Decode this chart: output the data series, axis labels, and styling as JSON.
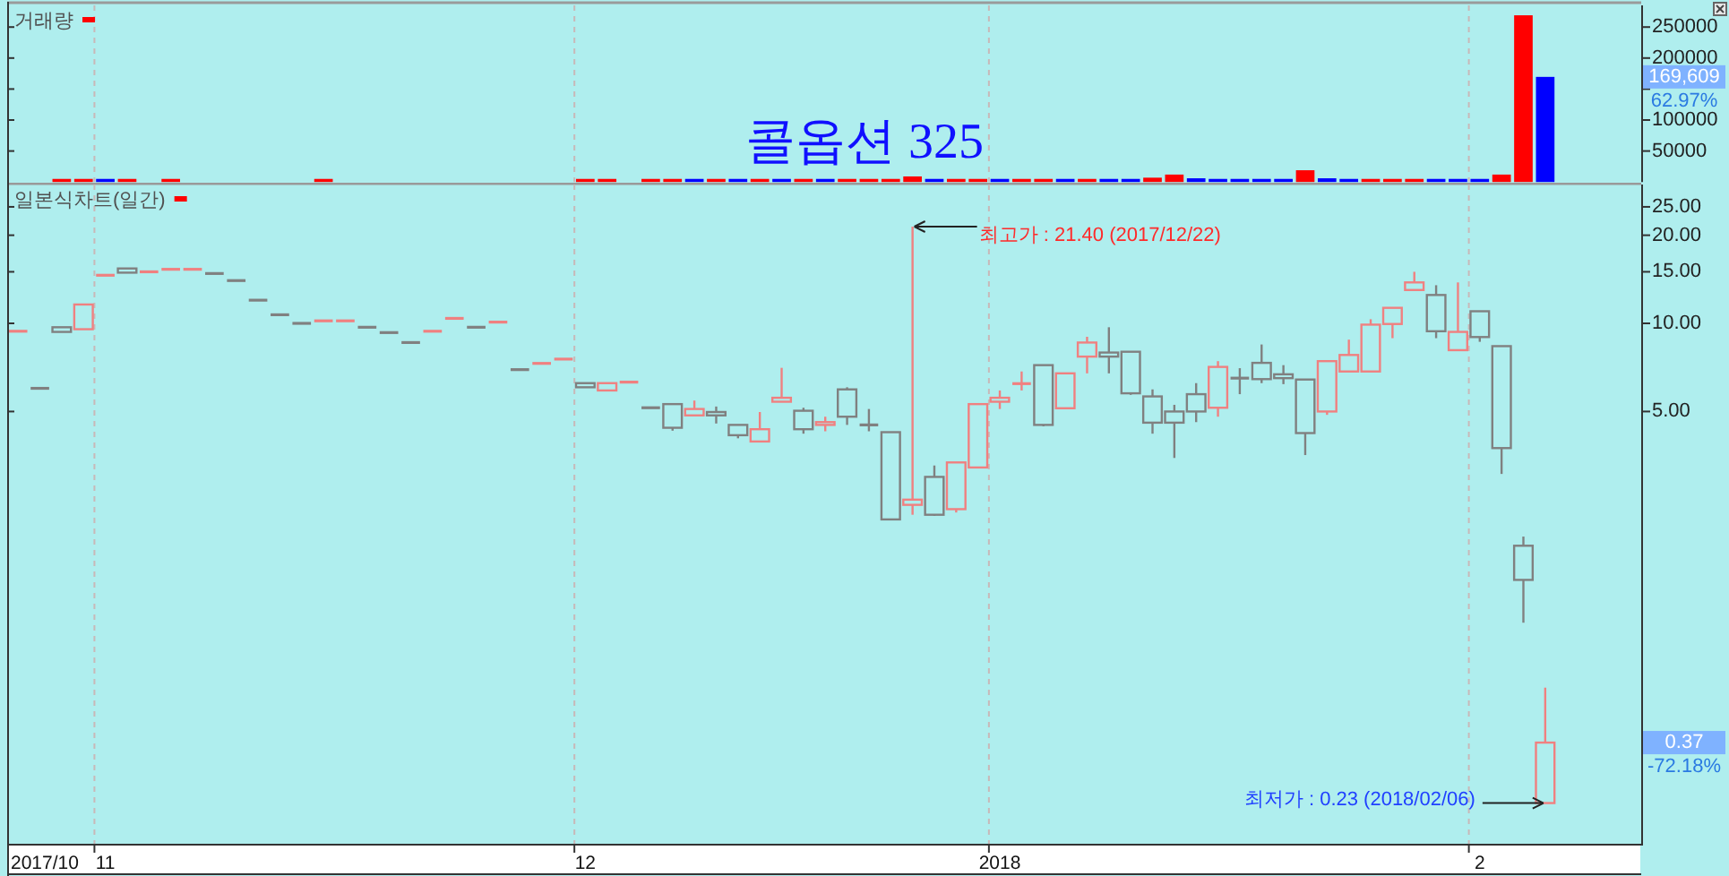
{
  "chart_data": [
    {
      "type": "bar",
      "title": "콜옵션 325",
      "categories": [
        null,
        "2017/10",
        null,
        null,
        "11",
        null,
        null,
        null,
        null,
        null,
        null,
        null,
        null,
        null,
        null,
        null,
        null,
        null,
        null,
        null,
        null,
        null,
        null,
        null,
        null,
        null,
        "12",
        null,
        null,
        null,
        null,
        null,
        null,
        null,
        null,
        null,
        null,
        null,
        null,
        null,
        null,
        null,
        null,
        null,
        null,
        "2018",
        null,
        null,
        null,
        null,
        null,
        null,
        null,
        null,
        null,
        null,
        null,
        null,
        null,
        null,
        null,
        null,
        null,
        null,
        null,
        null,
        null,
        "2",
        null,
        null,
        null
      ],
      "series": [
        {
          "name": "거래량",
          "color": "#ff0000",
          "values": [
            null,
            null,
            5000,
            5000,
            5000,
            5000,
            null,
            5000,
            null,
            null,
            null,
            null,
            null,
            null,
            5000,
            null,
            null,
            null,
            null,
            null,
            null,
            null,
            null,
            null,
            null,
            null,
            5000,
            5000,
            null,
            5000,
            5000,
            5000,
            5000,
            5000,
            5000,
            5000,
            5000,
            5000,
            5000,
            5000,
            5000,
            9000,
            5000,
            5000,
            5000,
            5000,
            5000,
            5000,
            5000,
            5000,
            5000,
            5000,
            7000,
            12000,
            6000,
            5000,
            5000,
            5000,
            5000,
            19000,
            6000,
            5000,
            5000,
            5000,
            5000,
            5000,
            5000,
            5000,
            12000,
            269000,
            169609
          ],
          "colors": [
            null,
            null,
            "#ff0000",
            "#ff0000",
            "#0000ff",
            "#ff0000",
            null,
            "#ff0000",
            null,
            null,
            null,
            null,
            null,
            null,
            "#ff0000",
            null,
            null,
            null,
            null,
            null,
            null,
            null,
            null,
            null,
            null,
            null,
            "#ff0000",
            "#ff0000",
            null,
            "#ff0000",
            "#ff0000",
            "#0000ff",
            "#ff0000",
            "#0000ff",
            "#ff0000",
            "#0000ff",
            "#ff0000",
            "#0000ff",
            "#ff0000",
            "#ff0000",
            "#ff0000",
            "#ff0000",
            "#0000ff",
            "#ff0000",
            "#ff0000",
            "#0000ff",
            "#ff0000",
            "#ff0000",
            "#0000ff",
            "#ff0000",
            "#0000ff",
            "#0000ff",
            "#ff0000",
            "#ff0000",
            "#0000ff",
            "#0000ff",
            "#0000ff",
            "#0000ff",
            "#0000ff",
            "#ff0000",
            "#0000ff",
            "#0000ff",
            "#ff0000",
            "#ff0000",
            "#ff0000",
            "#0000ff",
            "#0000ff",
            "#0000ff",
            "#ff0000",
            "#ff0000",
            "#0000ff"
          ]
        }
      ],
      "ylim": [
        0,
        285000
      ],
      "yticks": [
        50000,
        100000,
        {
          "value": 150000,
          "label": null
        },
        200000,
        250000
      ],
      "grid": "x",
      "legend": "top left",
      "tick_labels": "y",
      "annotations": [
        "169,609",
        "62.97%"
      ]
    },
    {
      "type": "candlestick",
      "categories": [
        null,
        "2017/10",
        null,
        null,
        "11",
        null,
        null,
        null,
        null,
        null,
        null,
        null,
        null,
        null,
        null,
        null,
        null,
        null,
        null,
        null,
        null,
        null,
        null,
        null,
        null,
        null,
        "12",
        null,
        null,
        null,
        null,
        null,
        null,
        null,
        null,
        null,
        null,
        null,
        null,
        null,
        null,
        null,
        null,
        null,
        null,
        "2018",
        null,
        null,
        null,
        null,
        null,
        null,
        null,
        null,
        null,
        null,
        null,
        null,
        null,
        null,
        null,
        null,
        null,
        null,
        null,
        null,
        null,
        "2",
        null,
        null,
        null
      ],
      "series": [
        {
          "name": "일본식차트(일간)",
          "color": "#ff0000",
          "ohlc": [
            [
              9.4,
              9.4,
              9.4,
              9.4
            ],
            [
              6.0,
              6.0,
              6.0,
              6.0
            ],
            [
              9.7,
              9.7,
              9.35,
              9.35
            ],
            [
              9.55,
              11.6,
              9.55,
              11.6
            ],
            [
              14.6,
              14.6,
              14.6,
              14.6
            ],
            [
              15.4,
              15.4,
              14.9,
              14.9
            ],
            [
              15.0,
              15.0,
              15.0,
              15.0
            ],
            [
              15.3,
              15.3,
              15.3,
              15.3
            ],
            [
              15.3,
              15.3,
              15.3,
              15.3
            ],
            [
              14.8,
              14.8,
              14.8,
              14.8
            ],
            [
              14.0,
              14.0,
              14.0,
              14.0
            ],
            [
              12.0,
              12.0,
              12.0,
              12.0
            ],
            [
              10.7,
              10.7,
              10.7,
              10.7
            ],
            [
              10.0,
              10.0,
              10.0,
              10.0
            ],
            [
              10.2,
              10.2,
              10.2,
              10.2
            ],
            [
              10.2,
              10.2,
              10.2,
              10.2
            ],
            [
              9.7,
              9.7,
              9.7,
              9.7
            ],
            [
              9.3,
              9.3,
              9.3,
              9.3
            ],
            [
              8.6,
              8.6,
              8.6,
              8.6
            ],
            [
              9.4,
              9.4,
              9.4,
              9.4
            ],
            [
              10.4,
              10.4,
              10.4,
              10.4
            ],
            [
              9.7,
              9.7,
              9.7,
              9.7
            ],
            [
              10.1,
              10.1,
              10.1,
              10.1
            ],
            [
              6.95,
              6.95,
              6.95,
              6.95
            ],
            [
              7.3,
              7.3,
              7.3,
              7.3
            ],
            [
              7.55,
              7.55,
              7.55,
              7.55
            ],
            [
              6.25,
              6.25,
              6.05,
              6.05
            ],
            [
              5.9,
              6.25,
              5.9,
              6.25
            ],
            [
              6.3,
              6.3,
              6.3,
              6.3
            ],
            [
              5.15,
              5.15,
              5.15,
              5.15
            ],
            [
              5.3,
              5.3,
              4.3,
              4.4
            ],
            [
              4.85,
              5.45,
              4.85,
              5.1
            ],
            [
              4.98,
              5.2,
              4.55,
              4.85
            ],
            [
              4.5,
              4.5,
              4.05,
              4.15
            ],
            [
              3.95,
              4.98,
              3.95,
              4.35
            ],
            [
              5.4,
              7.05,
              5.4,
              5.57
            ],
            [
              5.03,
              5.15,
              4.2,
              4.35
            ],
            [
              4.5,
              4.8,
              4.28,
              4.6
            ],
            [
              5.95,
              6.05,
              4.5,
              4.8
            ],
            [
              4.5,
              5.1,
              4.28,
              4.5
            ],
            [
              4.25,
              4.25,
              2.14,
              2.14
            ],
            [
              2.4,
              21.4,
              2.22,
              2.5
            ],
            [
              2.99,
              3.27,
              2.2,
              2.22
            ],
            [
              2.32,
              3.35,
              2.26,
              3.35
            ],
            [
              3.22,
              5.3,
              3.22,
              5.3
            ],
            [
              5.4,
              5.9,
              5.1,
              5.57
            ],
            [
              6.2,
              6.85,
              5.9,
              6.25
            ],
            [
              7.2,
              7.2,
              4.45,
              4.5
            ],
            [
              5.13,
              6.75,
              5.13,
              6.75
            ],
            [
              7.7,
              9.0,
              6.75,
              8.6
            ],
            [
              7.95,
              9.7,
              6.75,
              7.7
            ],
            [
              8.0,
              8.0,
              5.7,
              5.77
            ],
            [
              5.63,
              5.95,
              4.2,
              4.58
            ],
            [
              5.0,
              5.27,
              3.47,
              4.58
            ],
            [
              5.73,
              6.25,
              4.6,
              5.0
            ],
            [
              5.15,
              7.43,
              4.8,
              7.1
            ],
            [
              6.5,
              7.03,
              5.73,
              6.5
            ],
            [
              7.33,
              8.47,
              6.25,
              6.45
            ],
            [
              6.7,
              7.2,
              6.2,
              6.5
            ],
            [
              6.43,
              6.43,
              3.55,
              4.22
            ],
            [
              5.0,
              7.43,
              4.87,
              7.43
            ],
            [
              6.85,
              8.8,
              6.85,
              7.8
            ],
            [
              6.85,
              10.33,
              6.85,
              9.9
            ],
            [
              9.95,
              11.3,
              8.9,
              11.3
            ],
            [
              13.0,
              15.0,
              13.0,
              13.8
            ],
            [
              12.5,
              13.5,
              8.9,
              9.4
            ],
            [
              8.1,
              13.8,
              8.1,
              9.35
            ],
            [
              11.0,
              11.0,
              8.65,
              8.98
            ],
            [
              8.36,
              8.36,
              3.06,
              3.75
            ],
            [
              1.74,
              1.87,
              0.95,
              1.33
            ],
            [
              0.23,
              0.57,
              0.23,
              0.37
            ]
          ],
          "colors": [
            "#f08080",
            "#808080",
            "#808080",
            "#f08080",
            "#f08080",
            "#808080",
            "#f08080",
            "#f08080",
            "#f08080",
            "#808080",
            "#808080",
            "#808080",
            "#808080",
            "#808080",
            "#f08080",
            "#f08080",
            "#808080",
            "#808080",
            "#808080",
            "#f08080",
            "#f08080",
            "#808080",
            "#f08080",
            "#808080",
            "#f08080",
            "#f08080",
            "#808080",
            "#f08080",
            "#f08080",
            "#808080",
            "#808080",
            "#f08080",
            "#808080",
            "#808080",
            "#f08080",
            "#f08080",
            "#808080",
            "#f08080",
            "#808080",
            "#808080",
            "#808080",
            "#f08080",
            "#808080",
            "#f08080",
            "#f08080",
            "#f08080",
            "#f08080",
            "#808080",
            "#f08080",
            "#f08080",
            "#808080",
            "#808080",
            "#808080",
            "#808080",
            "#808080",
            "#f08080",
            "#808080",
            "#808080",
            "#808080",
            "#808080",
            "#f08080",
            "#f08080",
            "#f08080",
            "#f08080",
            "#f08080",
            "#808080",
            "#f08080",
            "#808080",
            "#808080",
            "#808080",
            "#f08080"
          ]
        }
      ],
      "log": true,
      "ylim": [
        0.167,
        29.8
      ],
      "yticks": [
        {
          "value": 5,
          "label": "5.00"
        },
        {
          "value": 10,
          "label": "10.00"
        },
        {
          "value": 15,
          "label": "15.00"
        },
        {
          "value": 20,
          "label": "20.00"
        },
        {
          "value": 25,
          "label": "25.00"
        }
      ],
      "grid": "x",
      "legend": "top left",
      "annotations": [
        "최고가 : 21.40 (2017/12/22)",
        "최저가 : 0.23 (2018/02/06)",
        "0.37",
        "-72.18%"
      ]
    }
  ]
}
